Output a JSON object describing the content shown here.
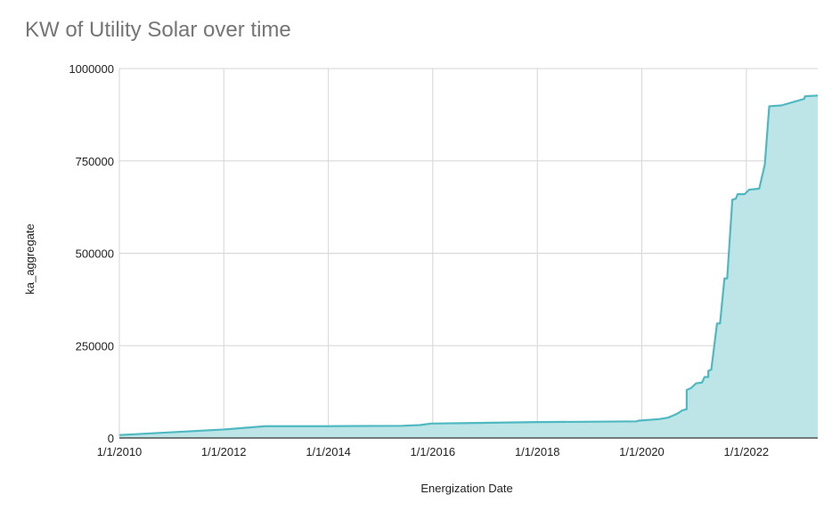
{
  "chart_data": {
    "type": "area",
    "title": "KW of Utility Solar over time",
    "xlabel": "Energization Date",
    "ylabel": "ka_aggregate",
    "x_is_date": true,
    "xlim": [
      "2010-01-01",
      "2023-05-15"
    ],
    "ylim": [
      0,
      1000000
    ],
    "y_ticks": [
      0,
      250000,
      500000,
      750000,
      1000000
    ],
    "y_tick_labels": [
      "0",
      "250000",
      "500000",
      "750000",
      "1000000"
    ],
    "x_ticks": [
      "2010-01-01",
      "2012-01-01",
      "2014-01-01",
      "2016-01-01",
      "2018-01-01",
      "2020-01-01",
      "2022-01-01"
    ],
    "x_tick_labels": [
      "1/1/2010",
      "1/1/2012",
      "1/1/2014",
      "1/1/2016",
      "1/1/2018",
      "1/1/2020",
      "1/1/2022"
    ],
    "grid": true,
    "legend": "none",
    "series": [
      {
        "color": "#4fb9c1",
        "fill": "#bde4e7",
        "points": [
          [
            "2010-01-01",
            8000
          ],
          [
            "2012-01-01",
            23000
          ],
          [
            "2012-10-15",
            32000
          ],
          [
            "2014-01-01",
            32000
          ],
          [
            "2015-06-01",
            33000
          ],
          [
            "2015-10-01",
            35000
          ],
          [
            "2015-12-20",
            39000
          ],
          [
            "2018-01-01",
            43000
          ],
          [
            "2019-11-25",
            45000
          ],
          [
            "2019-12-10",
            47000
          ],
          [
            "2020-05-01",
            51000
          ],
          [
            "2020-07-01",
            55000
          ],
          [
            "2020-08-15",
            62000
          ],
          [
            "2020-09-15",
            68000
          ],
          [
            "2020-10-10",
            75000
          ],
          [
            "2020-11-10",
            78000
          ],
          [
            "2020-11-10",
            130000
          ],
          [
            "2020-12-10",
            135000
          ],
          [
            "2021-01-15",
            148000
          ],
          [
            "2021-02-25",
            150000
          ],
          [
            "2021-03-15",
            165000
          ],
          [
            "2021-04-10",
            165000
          ],
          [
            "2021-04-10",
            182000
          ],
          [
            "2021-05-01",
            185000
          ],
          [
            "2021-06-10",
            310000
          ],
          [
            "2021-07-01",
            310000
          ],
          [
            "2021-08-01",
            432000
          ],
          [
            "2021-08-20",
            432000
          ],
          [
            "2021-09-25",
            645000
          ],
          [
            "2021-10-20",
            648000
          ],
          [
            "2021-11-01",
            660000
          ],
          [
            "2021-12-20",
            660000
          ],
          [
            "2022-01-20",
            672000
          ],
          [
            "2022-04-01",
            675000
          ],
          [
            "2022-05-10",
            740000
          ],
          [
            "2022-06-10",
            898000
          ],
          [
            "2022-09-01",
            900000
          ],
          [
            "2023-02-10",
            918000
          ],
          [
            "2023-02-15",
            925000
          ],
          [
            "2023-05-15",
            927000
          ]
        ]
      }
    ]
  }
}
